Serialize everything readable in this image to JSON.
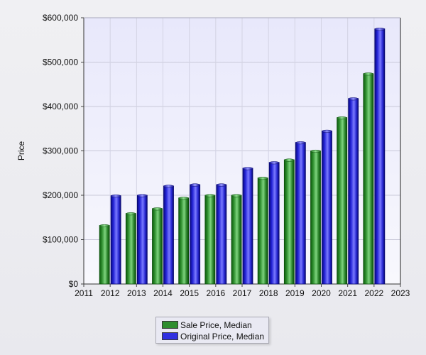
{
  "chart_data": {
    "type": "bar",
    "title": "",
    "xlabel": "",
    "ylabel": "Price",
    "xlim": [
      2011,
      2023
    ],
    "ylim": [
      0,
      600000
    ],
    "grid": true,
    "legend_position": "bottom-center",
    "x_ticks": [
      "2011",
      "2012",
      "2013",
      "2014",
      "2015",
      "2016",
      "2017",
      "2018",
      "2019",
      "2020",
      "2021",
      "2022",
      "2023"
    ],
    "y_ticks": [
      "$0",
      "$100,000",
      "$200,000",
      "$300,000",
      "$400,000",
      "$500,000",
      "$600,000"
    ],
    "categories": [
      "2012",
      "2013",
      "2014",
      "2015",
      "2016",
      "2017",
      "2018",
      "2019",
      "2020",
      "2021",
      "2022"
    ],
    "series": [
      {
        "name": "Sale Price, Median",
        "color": "#2f8f2f",
        "values": [
          132000,
          159000,
          170000,
          194000,
          200000,
          200000,
          239000,
          280000,
          300000,
          375000,
          474000
        ]
      },
      {
        "name": "Original Price, Median",
        "color": "#2f2fe0",
        "values": [
          199000,
          200000,
          221000,
          224000,
          224000,
          261000,
          274000,
          319000,
          345000,
          418000,
          575000
        ]
      }
    ]
  }
}
